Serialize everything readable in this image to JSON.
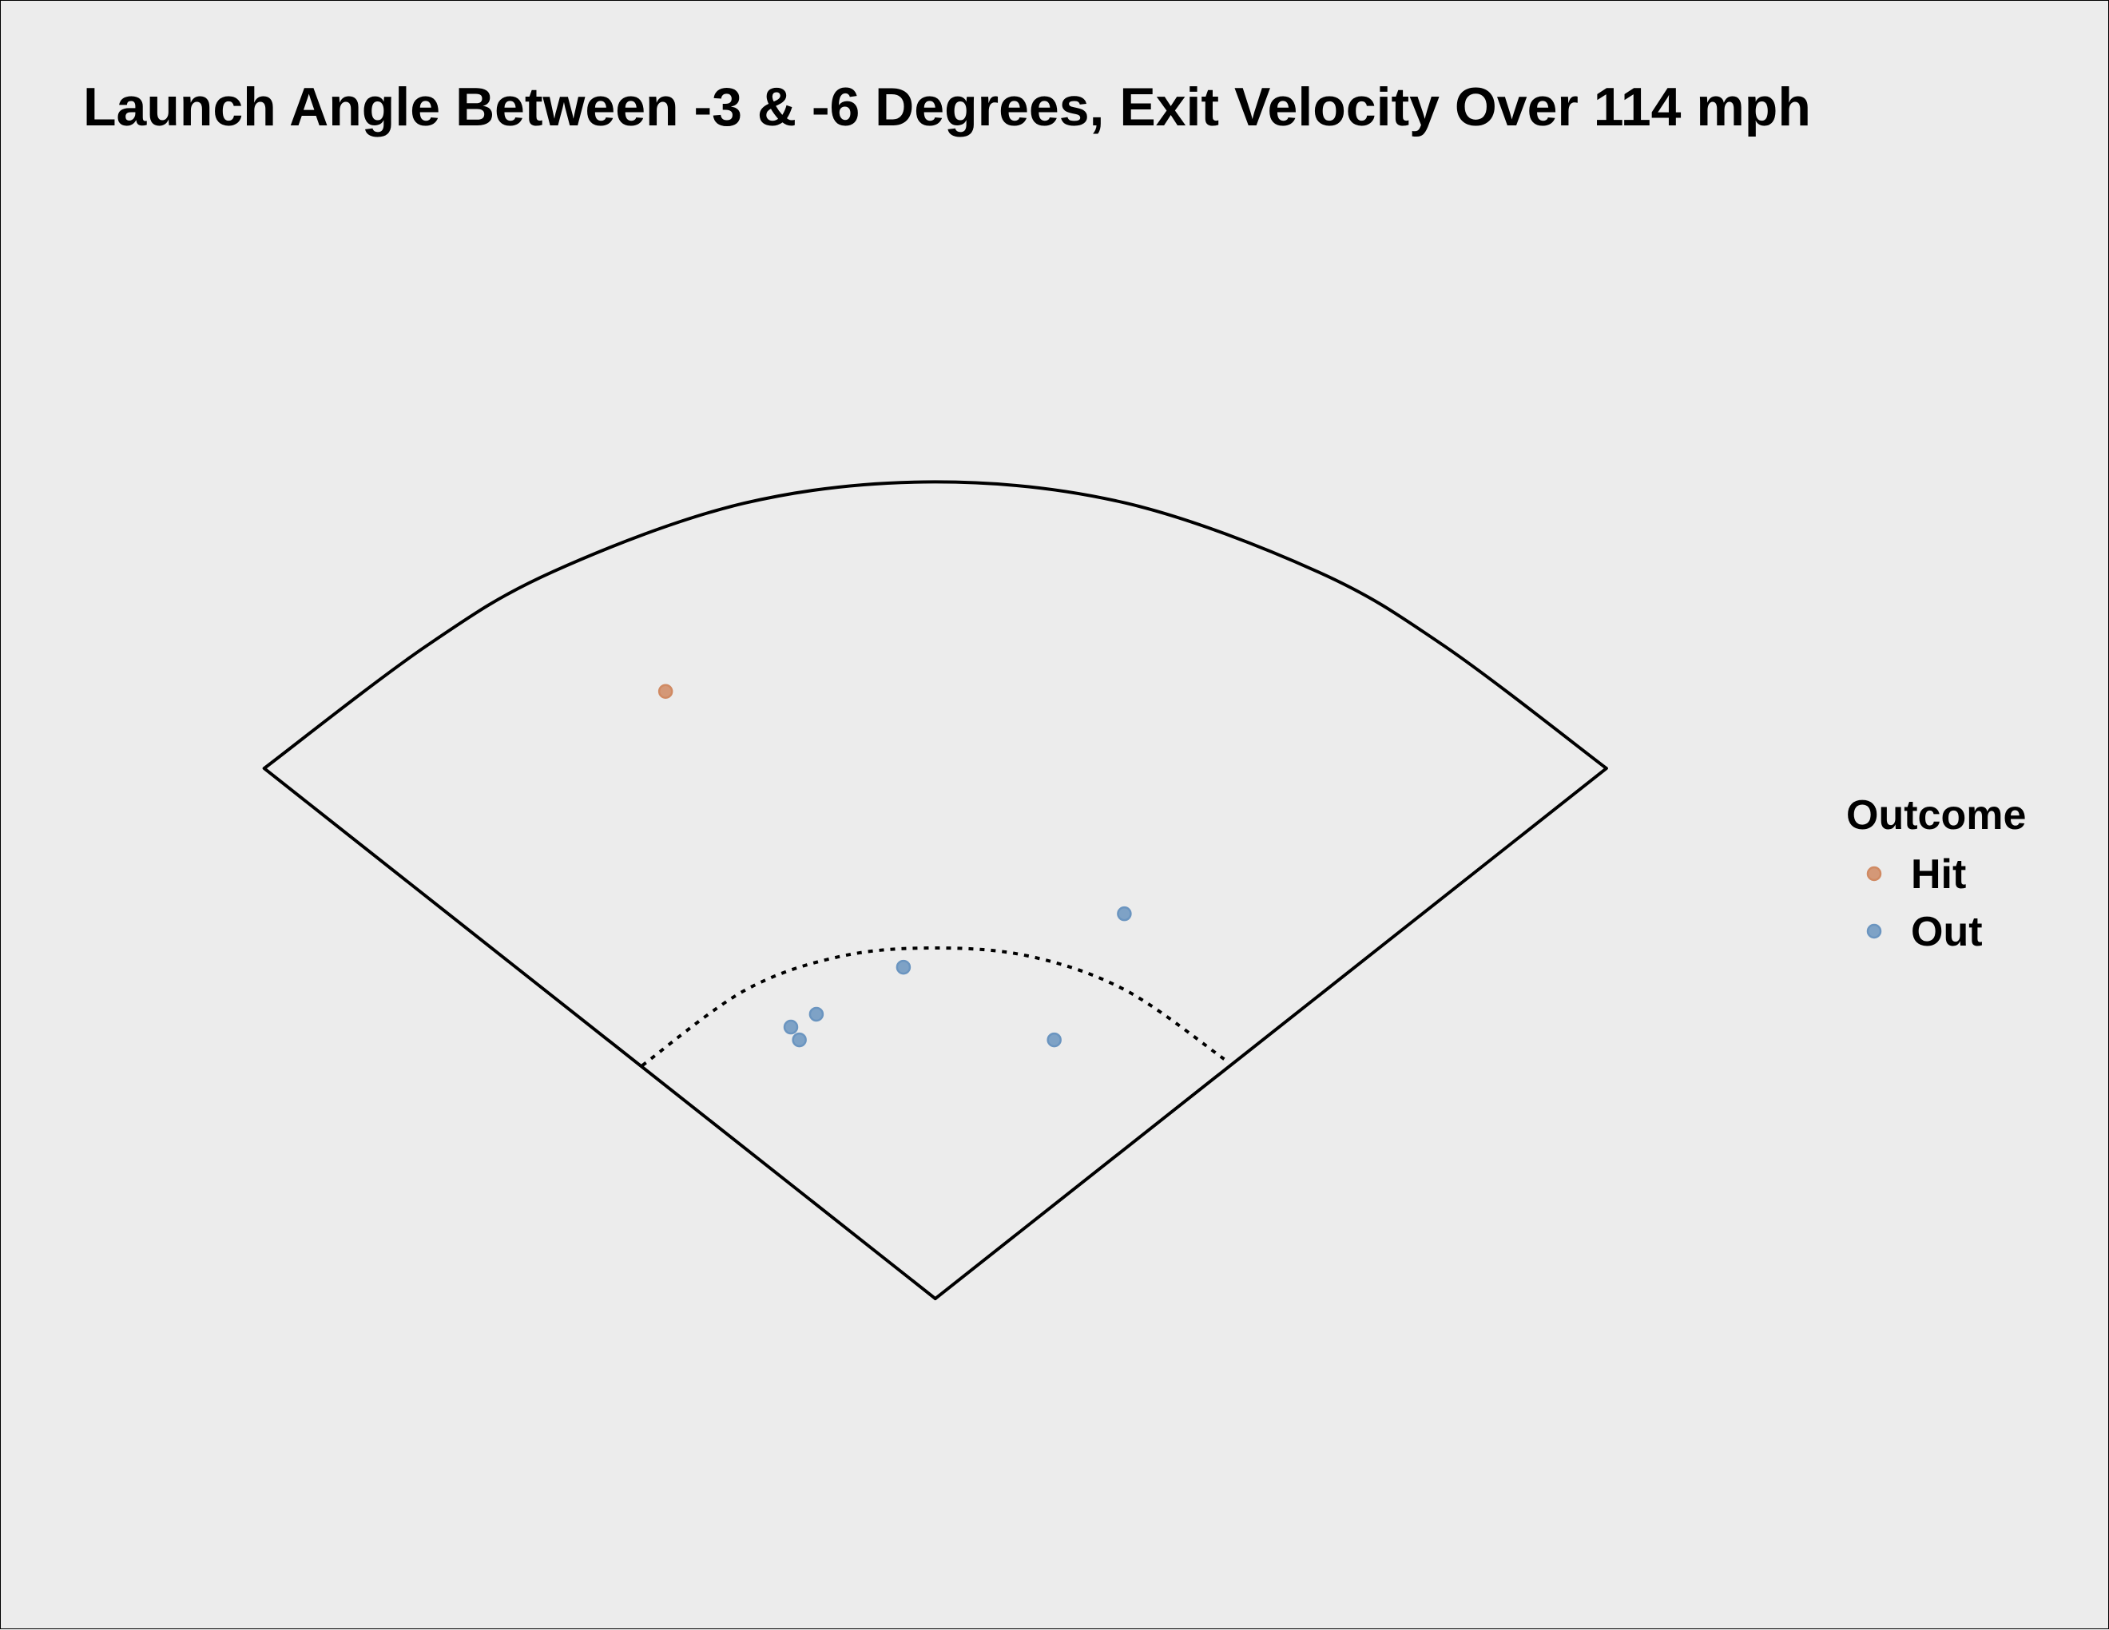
{
  "chart_data": {
    "type": "scatter",
    "title": "Launch Angle Between -3 & -6 Degrees, Exit Velocity Over 114 mph",
    "xlabel": "",
    "ylabel": "",
    "grid": false,
    "legend": {
      "title": "Outcome",
      "placement": "right",
      "entries": [
        {
          "label": "Hit",
          "color": "#d08a63"
        },
        {
          "label": "Out",
          "color": "#6b95c0"
        }
      ]
    },
    "series": [
      {
        "name": "Hit",
        "color": "#d08a63",
        "points": [
          {
            "x": -127,
            "y": 284
          }
        ]
      },
      {
        "name": "Out",
        "color": "#6b95c0",
        "points": [
          {
            "x": 89,
            "y": 180
          },
          {
            "x": -15,
            "y": 155
          },
          {
            "x": -56,
            "y": 133
          },
          {
            "x": -68,
            "y": 127
          },
          {
            "x": -64,
            "y": 121
          },
          {
            "x": 56,
            "y": 121
          }
        ]
      }
    ],
    "field": {
      "foul_lines": [
        [
          0,
          0
        ],
        [
          -316,
          248
        ],
        [
          316,
          248
        ]
      ],
      "outfield_wall": [
        [
          -316,
          248
        ],
        [
          -240,
          305
        ],
        [
          -180,
          340
        ],
        [
          -90,
          372
        ],
        [
          0,
          382
        ],
        [
          90,
          372
        ],
        [
          180,
          340
        ],
        [
          240,
          305
        ],
        [
          316,
          248
        ]
      ],
      "infield_arc": [
        [
          -138,
          109
        ],
        [
          -90,
          144
        ],
        [
          -45,
          160
        ],
        [
          0,
          164
        ],
        [
          45,
          160
        ],
        [
          90,
          144
        ],
        [
          136,
          112
        ]
      ]
    },
    "xlim": [
      -440,
      553
    ],
    "ylim": [
      -155,
      607
    ]
  }
}
